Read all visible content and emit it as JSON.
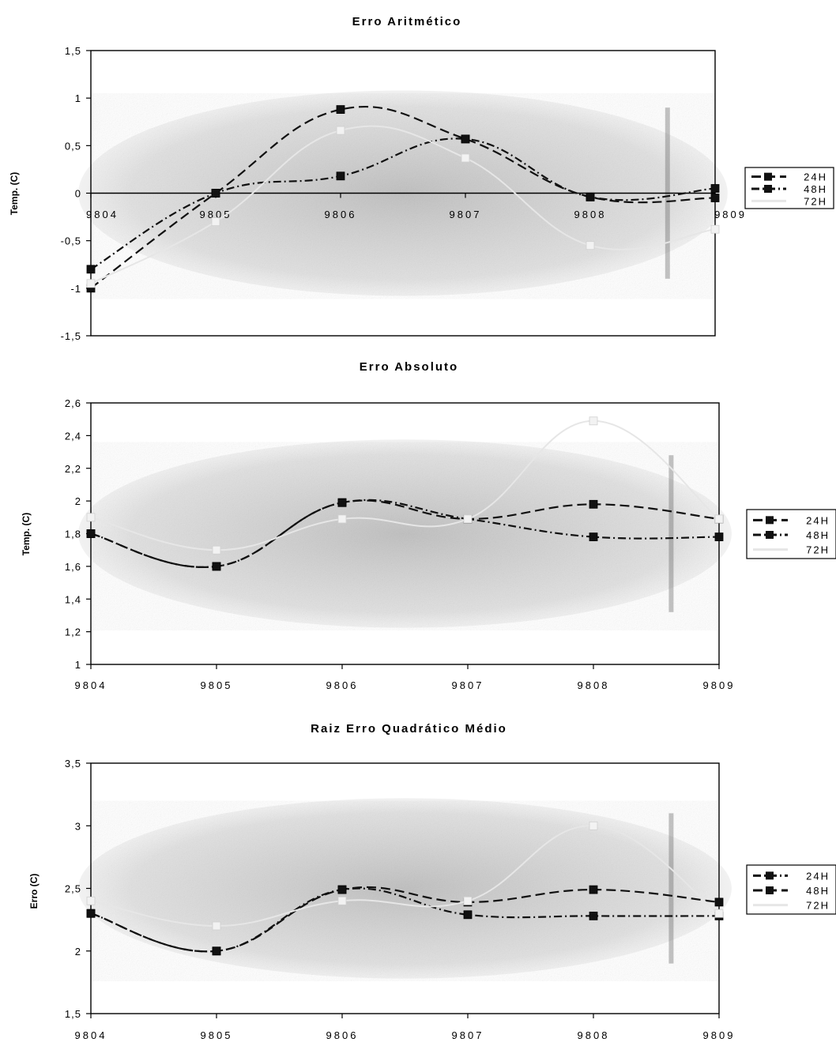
{
  "chart_data": [
    {
      "type": "line",
      "title": "Erro Aritmético",
      "xlabel": "",
      "ylabel": "Temp. (C)",
      "categories": [
        "9804",
        "9805",
        "9806",
        "9807",
        "9808",
        "9809"
      ],
      "ylim": [
        -1.5,
        1.5
      ],
      "yticks": [
        "-1,5",
        "-1",
        "-0,5",
        "0",
        "0,5",
        "1",
        "1,5"
      ],
      "ytick_values": [
        -1.5,
        -1,
        -0.5,
        0,
        0.5,
        1,
        1.5
      ],
      "zero_line": true,
      "xticks_at_zero": true,
      "grid": false,
      "legend_position": "right",
      "series": [
        {
          "name": "24H",
          "values": [
            -1.0,
            0.0,
            0.88,
            0.57,
            -0.04,
            -0.05
          ],
          "color": "#111111",
          "dash": "12,6",
          "marker": "#111111"
        },
        {
          "name": "48H",
          "values": [
            -0.8,
            0.0,
            0.18,
            0.57,
            -0.04,
            0.05
          ],
          "color": "#111111",
          "dash": "10,4,2,4",
          "marker": "#111111"
        },
        {
          "name": "72H",
          "values": [
            -0.95,
            -0.3,
            0.66,
            0.37,
            -0.55,
            -0.38
          ],
          "color": "#e6e6e6",
          "dash": "",
          "marker": "#f2f2f2"
        }
      ]
    },
    {
      "type": "line",
      "title": "Erro Absoluto",
      "xlabel": "",
      "ylabel": "Temp. (C)",
      "categories": [
        "9804",
        "9805",
        "9806",
        "9807",
        "9808",
        "9809"
      ],
      "ylim": [
        1,
        2.6
      ],
      "yticks": [
        "1",
        "1,2",
        "1,4",
        "1,6",
        "1,8",
        "2",
        "2,2",
        "2,4",
        "2,6"
      ],
      "ytick_values": [
        1,
        1.2,
        1.4,
        1.6,
        1.8,
        2,
        2.2,
        2.4,
        2.6
      ],
      "zero_line": false,
      "xticks_at_zero": false,
      "grid": false,
      "legend_position": "right",
      "series": [
        {
          "name": "24H",
          "values": [
            1.8,
            1.6,
            1.99,
            1.89,
            1.98,
            1.89
          ],
          "color": "#111111",
          "dash": "12,6",
          "marker": "#111111"
        },
        {
          "name": "48H",
          "values": [
            1.8,
            1.6,
            1.99,
            1.89,
            1.78,
            1.78
          ],
          "color": "#111111",
          "dash": "10,4,2,4",
          "marker": "#111111"
        },
        {
          "name": "72H",
          "values": [
            1.9,
            1.7,
            1.89,
            1.89,
            2.49,
            1.89
          ],
          "color": "#e6e6e6",
          "dash": "",
          "marker": "#f2f2f2"
        }
      ]
    },
    {
      "type": "line",
      "title": "Raiz Erro Quadrático Médio",
      "xlabel": "",
      "ylabel": "Erro (C)",
      "categories": [
        "9804",
        "9805",
        "9806",
        "9807",
        "9808",
        "9809"
      ],
      "ylim": [
        1.5,
        3.5
      ],
      "yticks": [
        "1,5",
        "2",
        "2,5",
        "3",
        "3,5"
      ],
      "ytick_values": [
        1.5,
        2,
        2.5,
        3,
        3.5
      ],
      "zero_line": false,
      "xticks_at_zero": false,
      "grid": false,
      "legend_position": "right",
      "series": [
        {
          "name": "24H",
          "values": [
            2.3,
            2.0,
            2.49,
            2.29,
            2.28,
            2.28
          ],
          "color": "#111111",
          "dash": "10,4,2,4",
          "marker": "#111111"
        },
        {
          "name": "48H",
          "values": [
            2.3,
            2.0,
            2.49,
            2.39,
            2.49,
            2.39
          ],
          "color": "#111111",
          "dash": "12,6",
          "marker": "#111111"
        },
        {
          "name": "72H",
          "values": [
            2.4,
            2.2,
            2.4,
            2.4,
            3.0,
            2.3
          ],
          "color": "#e6e6e6",
          "dash": "",
          "marker": "#f2f2f2"
        }
      ]
    }
  ]
}
